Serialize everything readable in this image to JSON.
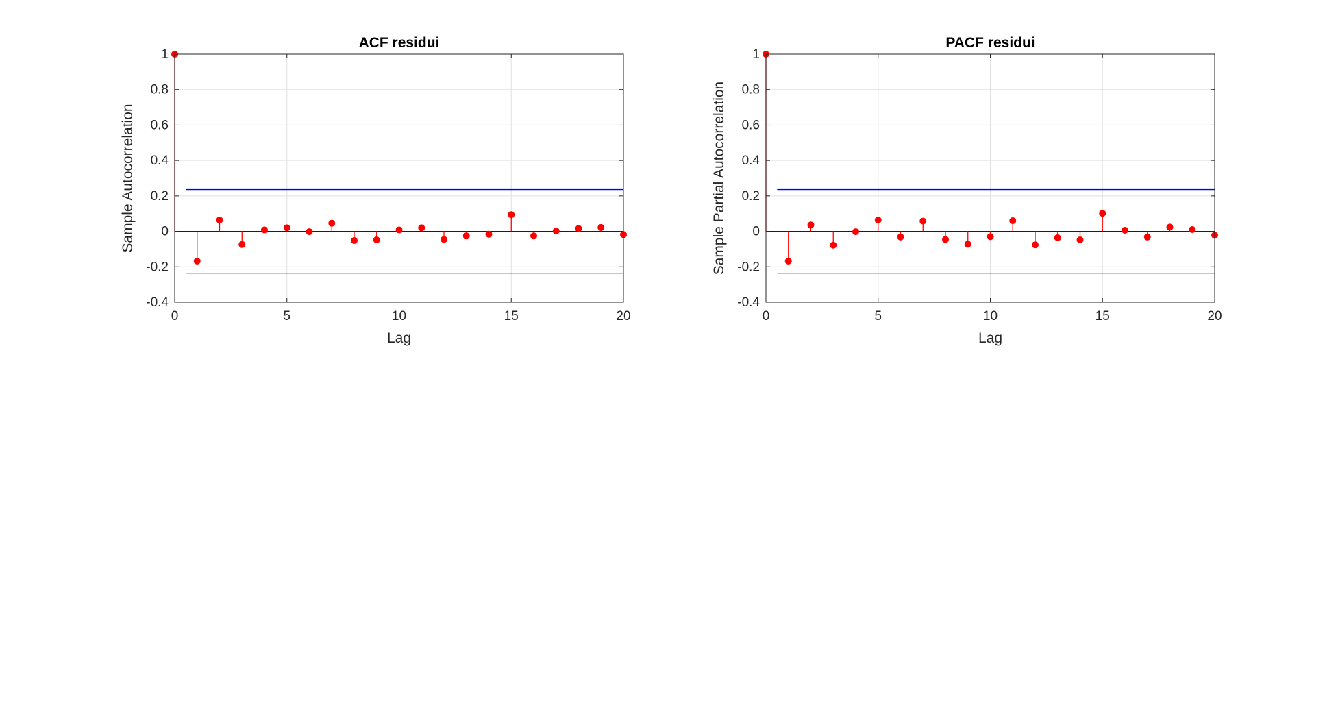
{
  "figure": {
    "background": "#ffffff"
  },
  "colors": {
    "stem": "#ff0000",
    "bounds": "#0000ff",
    "axis": "#262626",
    "grid": "#e0e0e0",
    "zero_line": "#000000"
  },
  "chart_data": [
    {
      "type": "stem",
      "title": "ACF residui",
      "xlabel": "Lag",
      "ylabel": "Sample Autocorrelation",
      "xlim": [
        0,
        20
      ],
      "ylim": [
        -0.4,
        1
      ],
      "xticks": [
        0,
        5,
        10,
        15,
        20
      ],
      "xtick_labels": [
        "0",
        "5",
        "10",
        "15",
        "20"
      ],
      "yticks": [
        -0.4,
        -0.2,
        0,
        0.2,
        0.4,
        0.6,
        0.8,
        1
      ],
      "ytick_labels": [
        "-0.4",
        "-0.2",
        "0",
        "0.2",
        "0.4",
        "0.6",
        "0.8",
        "1"
      ],
      "grid": true,
      "confidence_bounds": [
        0.236,
        -0.236
      ],
      "bounds_x_range": [
        0.5,
        20
      ],
      "lags": [
        0,
        1,
        2,
        3,
        4,
        5,
        6,
        7,
        8,
        9,
        10,
        11,
        12,
        13,
        14,
        15,
        16,
        17,
        18,
        19,
        20
      ],
      "values": [
        1,
        -0.168,
        0.064,
        -0.074,
        0.008,
        0.02,
        -0.002,
        0.046,
        -0.052,
        -0.048,
        0.008,
        0.02,
        -0.046,
        -0.026,
        -0.016,
        0.094,
        -0.026,
        0.002,
        0.016,
        0.022,
        -0.018
      ]
    },
    {
      "type": "stem",
      "title": "PACF residui",
      "xlabel": "Lag",
      "ylabel": "Sample Partial Autocorrelation",
      "xlim": [
        0,
        20
      ],
      "ylim": [
        -0.4,
        1
      ],
      "xticks": [
        0,
        5,
        10,
        15,
        20
      ],
      "xtick_labels": [
        "0",
        "5",
        "10",
        "15",
        "20"
      ],
      "yticks": [
        -0.4,
        -0.2,
        0,
        0.2,
        0.4,
        0.6,
        0.8,
        1
      ],
      "ytick_labels": [
        "-0.4",
        "-0.2",
        "0",
        "0.2",
        "0.4",
        "0.6",
        "0.8",
        "1"
      ],
      "grid": true,
      "confidence_bounds": [
        0.236,
        -0.236
      ],
      "bounds_x_range": [
        0.5,
        20
      ],
      "lags": [
        0,
        1,
        2,
        3,
        4,
        5,
        6,
        7,
        8,
        9,
        10,
        11,
        12,
        13,
        14,
        15,
        16,
        17,
        18,
        19,
        20
      ],
      "values": [
        1,
        -0.168,
        0.036,
        -0.078,
        -0.002,
        0.064,
        -0.032,
        0.058,
        -0.046,
        -0.072,
        -0.03,
        0.06,
        -0.076,
        -0.036,
        -0.048,
        0.102,
        0.006,
        -0.032,
        0.024,
        0.01,
        -0.022
      ]
    }
  ]
}
